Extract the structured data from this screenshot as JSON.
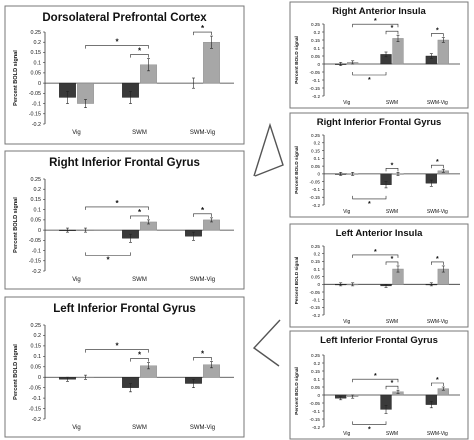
{
  "y_axis_label": "Percent BOLD signal",
  "chart_data": [
    {
      "type": "bar",
      "title": "Dorsolateral Prefrontal Cortex",
      "ylabel": "",
      "ylim": [
        -0.2,
        0.25
      ],
      "yticks": [
        "0.25",
        "0.2",
        "0.15",
        "0.1",
        "0.05",
        "0",
        "-0.05",
        "-0.1",
        "-0.15",
        "-0.2"
      ],
      "categories": [
        "Vig",
        "SWM",
        "SWM-Vig"
      ],
      "series": [
        {
          "values": [
            -0.07,
            -0.07,
            null
          ],
          "errors": [
            0.03,
            0.03,
            null
          ]
        },
        {
          "values": [
            -0.1,
            0.09,
            0.2
          ],
          "errors": [
            0.02,
            0.03,
            0.03
          ]
        }
      ],
      "extra_points": [
        {
          "category": "SWM-Vig",
          "value": 0.0,
          "error": 0.025
        }
      ],
      "colors": [
        "#3a3a3a",
        "#a7a7a7"
      ],
      "significance": [
        "*",
        "*",
        "*"
      ]
    },
    {
      "type": "bar",
      "title": "Right Inferior Frontal Gyrus",
      "ylabel": "",
      "ylim": [
        -0.2,
        0.25
      ],
      "yticks": [
        "0.25",
        "0.2",
        "0.15",
        "0.1",
        "0.05",
        "0",
        "-0.05",
        "-0.1",
        "-0.15",
        "-0.2"
      ],
      "categories": [
        "Vig",
        "SWM",
        "SWM-Vig"
      ],
      "series": [
        {
          "values": [
            0.0,
            -0.04,
            -0.03
          ],
          "errors": [
            0.01,
            0.02,
            0.02
          ]
        },
        {
          "values": [
            0.0,
            0.04,
            0.05
          ],
          "errors": [
            0.01,
            0.01,
            0.01
          ]
        }
      ],
      "colors": [
        "#3a3a3a",
        "#a7a7a7"
      ],
      "significance": [
        "*",
        "*",
        "*",
        "*"
      ]
    },
    {
      "type": "bar",
      "title": "Left Inferior Frontal Gyrus",
      "ylabel": "",
      "ylim": [
        -0.2,
        0.25
      ],
      "yticks": [
        "0.25",
        "0.2",
        "0.15",
        "0.1",
        "0.05",
        "0",
        "-0.05",
        "-0.1",
        "-0.15",
        "-0.2"
      ],
      "categories": [
        "Vig",
        "SWM",
        "SWM-Vig"
      ],
      "series": [
        {
          "values": [
            -0.01,
            -0.05,
            -0.03
          ],
          "errors": [
            0.01,
            0.02,
            0.02
          ]
        },
        {
          "values": [
            0.0,
            0.055,
            0.06
          ],
          "errors": [
            0.01,
            0.015,
            0.015
          ]
        }
      ],
      "colors": [
        "#3a3a3a",
        "#a7a7a7"
      ],
      "significance": [
        "*",
        "*",
        "*"
      ]
    },
    {
      "type": "bar",
      "title": "Right Anterior Insula",
      "ylabel": "",
      "ylim": [
        -0.2,
        0.25
      ],
      "yticks": [
        "0.25",
        "0.2",
        "0.15",
        "0.1",
        "0.05",
        "0",
        "-0.05",
        "-0.1",
        "-0.15",
        "-0.2"
      ],
      "categories": [
        "Vig",
        "SWM",
        "SWM-Vig"
      ],
      "series": [
        {
          "values": [
            0.0,
            0.06,
            0.05
          ],
          "errors": [
            0.01,
            0.015,
            0.015
          ]
        },
        {
          "values": [
            0.01,
            0.16,
            0.15
          ],
          "errors": [
            0.01,
            0.02,
            0.015
          ]
        }
      ],
      "colors": [
        "#3a3a3a",
        "#a7a7a7"
      ],
      "significance": [
        "*",
        "*",
        "*",
        "*"
      ]
    },
    {
      "type": "bar",
      "title": "Right Inferior Frontal Gyrus",
      "ylabel": "",
      "ylim": [
        -0.2,
        0.25
      ],
      "yticks": [
        "0.25",
        "0.2",
        "0.15",
        "0.1",
        "0.05",
        "0",
        "-0.05",
        "-0.1",
        "-0.15",
        "-0.2"
      ],
      "categories": [
        "Vig",
        "SWM",
        "SWM-Vig"
      ],
      "series": [
        {
          "values": [
            0.0,
            -0.07,
            -0.06
          ],
          "errors": [
            0.01,
            0.02,
            0.02
          ]
        },
        {
          "values": [
            0.0,
            0.0,
            0.02
          ],
          "errors": [
            0.01,
            0.01,
            0.01
          ]
        }
      ],
      "colors": [
        "#3a3a3a",
        "#a7a7a7"
      ],
      "significance": [
        "*",
        "*",
        "*"
      ]
    },
    {
      "type": "bar",
      "title": "Left Anterior Insula",
      "ylabel": "",
      "ylim": [
        -0.2,
        0.25
      ],
      "yticks": [
        "0.25",
        "0.2",
        "0.15",
        "0.1",
        "0.05",
        "0",
        "-0.05",
        "-0.1",
        "-0.15",
        "-0.2"
      ],
      "categories": [
        "Vig",
        "SWM",
        "SWM-Vig"
      ],
      "series": [
        {
          "values": [
            0.0,
            -0.01,
            0.0
          ],
          "errors": [
            0.01,
            0.01,
            0.01
          ]
        },
        {
          "values": [
            0.0,
            0.1,
            0.1
          ],
          "errors": [
            0.01,
            0.02,
            0.02
          ]
        }
      ],
      "colors": [
        "#3a3a3a",
        "#a7a7a7"
      ],
      "significance": [
        "*",
        "*",
        "*"
      ]
    },
    {
      "type": "bar",
      "title": "Left Inferior Frontal Gyrus",
      "ylabel": "",
      "ylim": [
        -0.2,
        0.25
      ],
      "yticks": [
        "0.25",
        "0.2",
        "0.15",
        "0.1",
        "0.05",
        "0",
        "-0.05",
        "-0.1",
        "-0.15",
        "-0.2"
      ],
      "categories": [
        "Vig",
        "SWM",
        "SWM-Vig"
      ],
      "series": [
        {
          "values": [
            -0.02,
            -0.09,
            -0.06
          ],
          "errors": [
            0.01,
            0.025,
            0.02
          ]
        },
        {
          "values": [
            -0.01,
            0.02,
            0.04
          ],
          "errors": [
            0.01,
            0.01,
            0.01
          ]
        }
      ],
      "colors": [
        "#3a3a3a",
        "#a7a7a7"
      ],
      "significance": [
        "*",
        "*",
        "*",
        "*"
      ]
    }
  ]
}
